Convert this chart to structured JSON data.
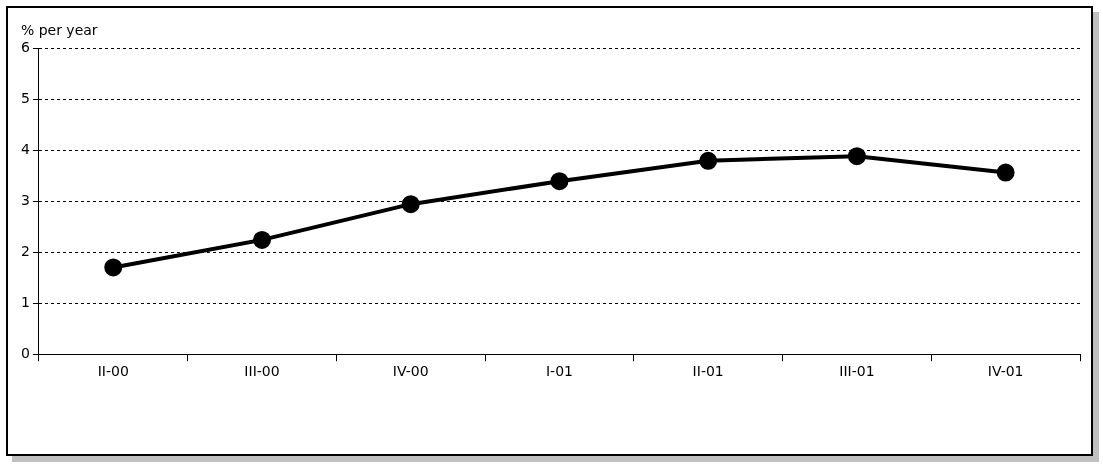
{
  "chart_data": {
    "type": "line",
    "ylabel": "% per year",
    "categories": [
      "II-00",
      "III-00",
      "IV-00",
      "I-01",
      "II-01",
      "III-01",
      "IV-01"
    ],
    "series": [
      {
        "color": "#000000",
        "values": [
          1.7,
          2.24,
          2.94,
          3.39,
          3.79,
          3.88,
          3.56
        ]
      }
    ],
    "ylim": [
      0,
      6
    ],
    "yticks": [
      0,
      1,
      2,
      3,
      4,
      5,
      6
    ],
    "grid": "y",
    "marker": "circle",
    "line_style": "solid",
    "legend": false
  }
}
